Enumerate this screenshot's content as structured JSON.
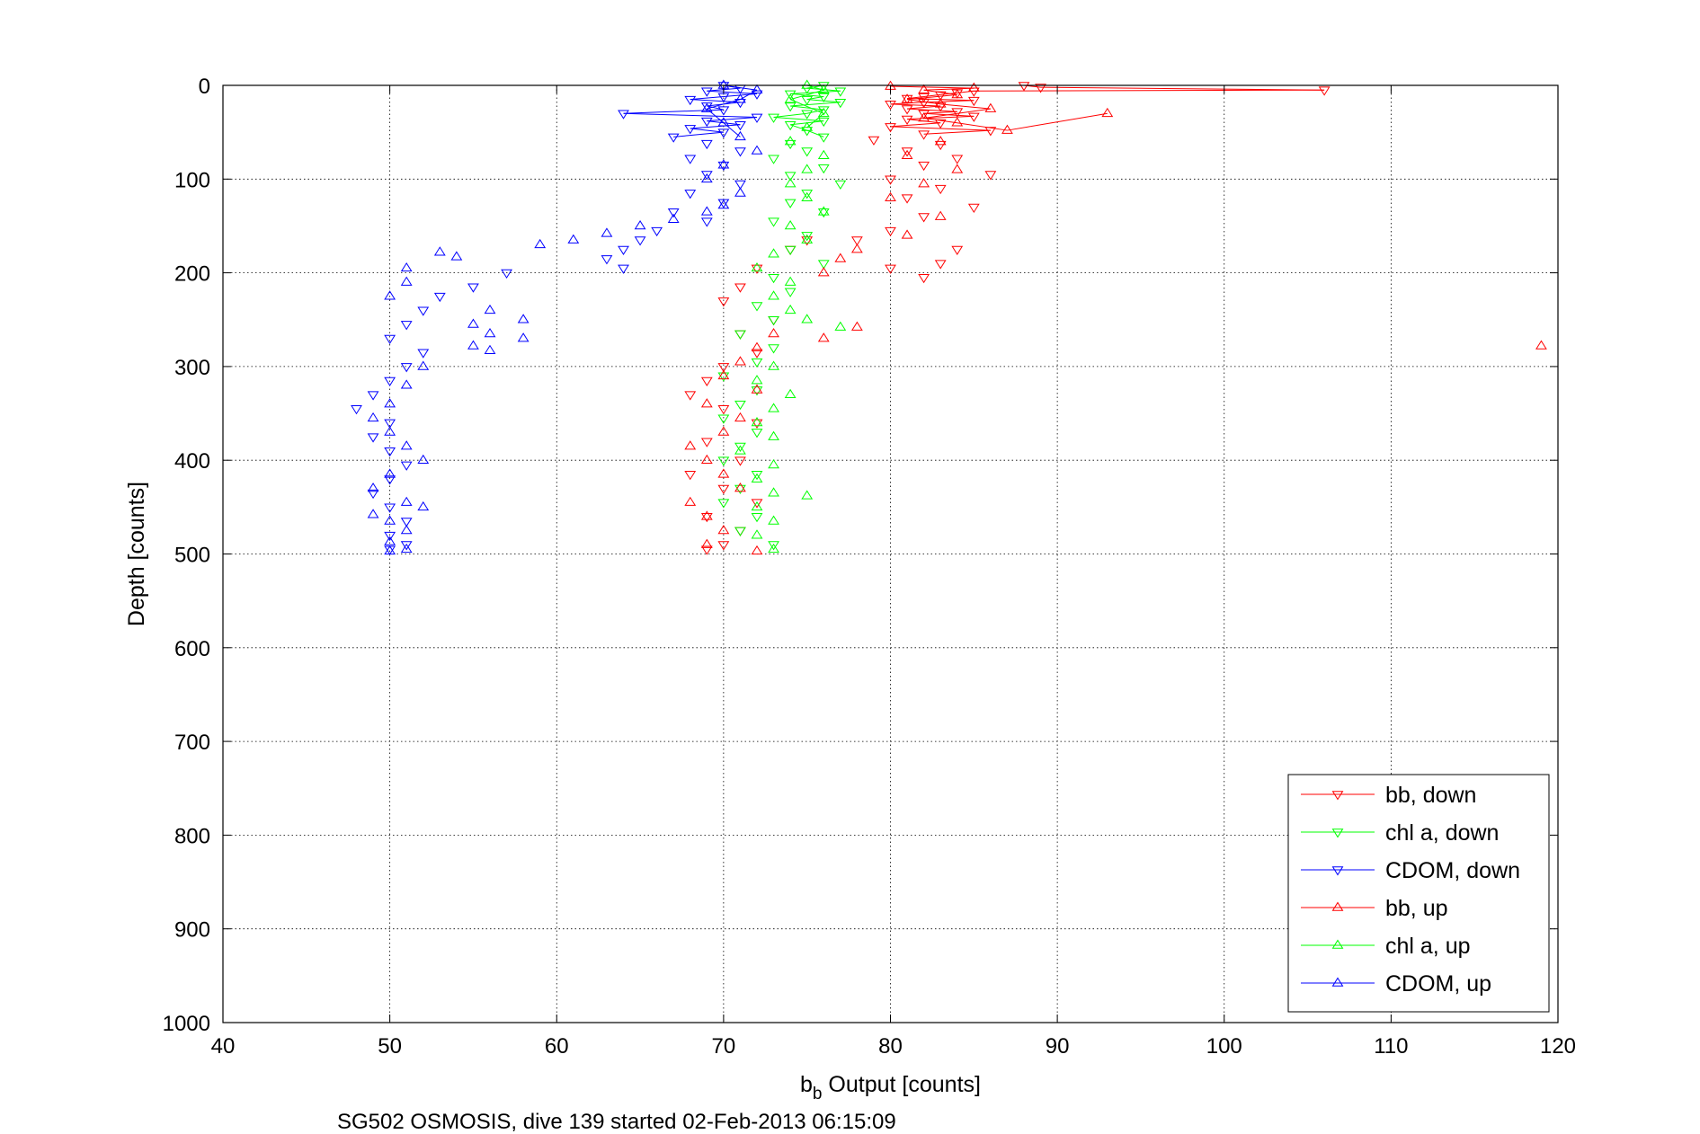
{
  "caption": "SG502 OSMOSIS, dive 139 started 02-Feb-2013 06:15:09",
  "chart_data": {
    "type": "scatter",
    "xlabel_main": "b",
    "xlabel_sub": "b",
    "xlabel_rest": " Output [counts]",
    "ylabel": "Depth [counts]",
    "xlim": [
      40,
      120
    ],
    "ylim": [
      0,
      1000
    ],
    "y_reversed": true,
    "xticks": [
      40,
      50,
      60,
      70,
      80,
      90,
      100,
      110,
      120
    ],
    "yticks": [
      0,
      100,
      200,
      300,
      400,
      500,
      600,
      700,
      800,
      900,
      1000
    ],
    "grid": true,
    "legend_position": "bottom-right",
    "series": [
      {
        "name": "bb, down",
        "color": "#ff0000",
        "marker": "triangle-down",
        "lines": true,
        "points": [
          [
            88,
            0
          ],
          [
            89,
            2
          ],
          [
            106,
            5
          ],
          [
            85,
            6
          ],
          [
            84,
            8
          ],
          [
            83,
            10
          ],
          [
            82,
            12
          ],
          [
            81,
            14
          ],
          [
            85,
            16
          ],
          [
            82,
            18
          ],
          [
            80,
            20
          ],
          [
            83,
            22
          ],
          [
            81,
            25
          ],
          [
            84,
            28
          ],
          [
            82,
            30
          ],
          [
            85,
            33
          ],
          [
            81,
            36
          ],
          [
            83,
            40
          ],
          [
            80,
            44
          ],
          [
            86,
            48
          ],
          [
            82,
            52
          ],
          [
            79,
            58
          ],
          [
            83,
            63
          ],
          [
            81,
            70
          ],
          [
            84,
            78
          ],
          [
            82,
            85
          ],
          [
            86,
            95
          ],
          [
            80,
            100
          ],
          [
            83,
            110
          ],
          [
            81,
            120
          ],
          [
            85,
            130
          ],
          [
            82,
            140
          ],
          [
            80,
            155
          ],
          [
            78,
            165
          ],
          [
            84,
            175
          ],
          [
            83,
            190
          ],
          [
            80,
            195
          ],
          [
            82,
            205
          ],
          [
            75,
            165
          ],
          [
            74,
            175
          ],
          [
            72,
            195
          ],
          [
            71,
            215
          ],
          [
            70,
            230
          ],
          [
            73,
            250
          ],
          [
            71,
            265
          ],
          [
            72,
            285
          ],
          [
            70,
            300
          ],
          [
            69,
            315
          ],
          [
            68,
            330
          ],
          [
            70,
            345
          ],
          [
            72,
            360
          ],
          [
            69,
            380
          ],
          [
            71,
            400
          ],
          [
            68,
            415
          ],
          [
            70,
            430
          ],
          [
            72,
            445
          ],
          [
            69,
            460
          ],
          [
            71,
            475
          ],
          [
            70,
            490
          ],
          [
            69,
            495
          ]
        ]
      },
      {
        "name": "chl a, down",
        "color": "#00ff00",
        "marker": "triangle-down",
        "lines": true,
        "points": [
          [
            76,
            0
          ],
          [
            75,
            3
          ],
          [
            77,
            6
          ],
          [
            74,
            9
          ],
          [
            76,
            12
          ],
          [
            75,
            15
          ],
          [
            77,
            18
          ],
          [
            74,
            22
          ],
          [
            76,
            26
          ],
          [
            75,
            30
          ],
          [
            73,
            34
          ],
          [
            76,
            38
          ],
          [
            74,
            42
          ],
          [
            75,
            48
          ],
          [
            76,
            55
          ],
          [
            74,
            62
          ],
          [
            75,
            70
          ],
          [
            73,
            78
          ],
          [
            76,
            88
          ],
          [
            74,
            96
          ],
          [
            77,
            105
          ],
          [
            75,
            115
          ],
          [
            74,
            125
          ],
          [
            76,
            135
          ],
          [
            73,
            145
          ],
          [
            75,
            160
          ],
          [
            74,
            175
          ],
          [
            76,
            190
          ],
          [
            73,
            205
          ],
          [
            74,
            220
          ],
          [
            72,
            235
          ],
          [
            73,
            250
          ],
          [
            71,
            265
          ],
          [
            73,
            280
          ],
          [
            72,
            295
          ],
          [
            70,
            310
          ],
          [
            72,
            325
          ],
          [
            71,
            340
          ],
          [
            70,
            355
          ],
          [
            72,
            370
          ],
          [
            71,
            385
          ],
          [
            70,
            400
          ],
          [
            72,
            415
          ],
          [
            71,
            430
          ],
          [
            70,
            445
          ],
          [
            72,
            460
          ],
          [
            71,
            475
          ],
          [
            73,
            490
          ]
        ]
      },
      {
        "name": "CDOM, down",
        "color": "#0000ff",
        "marker": "triangle-down",
        "lines": true,
        "points": [
          [
            70,
            0
          ],
          [
            71,
            3
          ],
          [
            69,
            6
          ],
          [
            72,
            9
          ],
          [
            70,
            12
          ],
          [
            68,
            15
          ],
          [
            71,
            18
          ],
          [
            69,
            22
          ],
          [
            70,
            26
          ],
          [
            64,
            30
          ],
          [
            72,
            34
          ],
          [
            69,
            38
          ],
          [
            71,
            42
          ],
          [
            68,
            46
          ],
          [
            70,
            50
          ],
          [
            67,
            55
          ],
          [
            69,
            62
          ],
          [
            71,
            70
          ],
          [
            68,
            78
          ],
          [
            70,
            85
          ],
          [
            69,
            95
          ],
          [
            71,
            105
          ],
          [
            68,
            115
          ],
          [
            70,
            125
          ],
          [
            67,
            135
          ],
          [
            69,
            145
          ],
          [
            66,
            155
          ],
          [
            65,
            165
          ],
          [
            64,
            175
          ],
          [
            63,
            185
          ],
          [
            64,
            195
          ],
          [
            57,
            200
          ],
          [
            55,
            215
          ],
          [
            53,
            225
          ],
          [
            52,
            240
          ],
          [
            51,
            255
          ],
          [
            50,
            270
          ],
          [
            52,
            285
          ],
          [
            51,
            300
          ],
          [
            50,
            315
          ],
          [
            49,
            330
          ],
          [
            48,
            345
          ],
          [
            50,
            360
          ],
          [
            49,
            375
          ],
          [
            50,
            390
          ],
          [
            51,
            405
          ],
          [
            50,
            420
          ],
          [
            49,
            435
          ],
          [
            50,
            450
          ],
          [
            51,
            465
          ],
          [
            50,
            480
          ],
          [
            51,
            490
          ],
          [
            50,
            495
          ]
        ]
      },
      {
        "name": "bb, up",
        "color": "#ff0000",
        "marker": "triangle-up",
        "lines": true,
        "points": [
          [
            119,
            278
          ],
          [
            93,
            30
          ],
          [
            87,
            48
          ],
          [
            84,
            40
          ],
          [
            82,
            35
          ],
          [
            86,
            25
          ],
          [
            83,
            20
          ],
          [
            81,
            15
          ],
          [
            84,
            10
          ],
          [
            82,
            5
          ],
          [
            85,
            3
          ],
          [
            80,
            1
          ],
          [
            83,
            60
          ],
          [
            81,
            75
          ],
          [
            84,
            90
          ],
          [
            82,
            105
          ],
          [
            80,
            120
          ],
          [
            83,
            140
          ],
          [
            81,
            160
          ],
          [
            78,
            175
          ],
          [
            77,
            185
          ],
          [
            76,
            200
          ],
          [
            78,
            258
          ],
          [
            76,
            270
          ],
          [
            73,
            265
          ],
          [
            72,
            280
          ],
          [
            71,
            295
          ],
          [
            70,
            310
          ],
          [
            72,
            325
          ],
          [
            69,
            340
          ],
          [
            71,
            355
          ],
          [
            70,
            370
          ],
          [
            68,
            385
          ],
          [
            69,
            400
          ],
          [
            70,
            415
          ],
          [
            71,
            430
          ],
          [
            68,
            445
          ],
          [
            69,
            460
          ],
          [
            70,
            475
          ],
          [
            69,
            490
          ],
          [
            72,
            497
          ]
        ]
      },
      {
        "name": "chl a, up",
        "color": "#00ff00",
        "marker": "triangle-up",
        "lines": true,
        "points": [
          [
            77,
            258
          ],
          [
            75,
            250
          ],
          [
            74,
            240
          ],
          [
            73,
            225
          ],
          [
            74,
            210
          ],
          [
            72,
            195
          ],
          [
            73,
            180
          ],
          [
            75,
            165
          ],
          [
            74,
            150
          ],
          [
            76,
            135
          ],
          [
            75,
            120
          ],
          [
            74,
            105
          ],
          [
            75,
            90
          ],
          [
            76,
            75
          ],
          [
            74,
            60
          ],
          [
            75,
            45
          ],
          [
            76,
            30
          ],
          [
            74,
            15
          ],
          [
            76,
            5
          ],
          [
            75,
            0
          ],
          [
            73,
            300
          ],
          [
            72,
            315
          ],
          [
            74,
            330
          ],
          [
            73,
            345
          ],
          [
            72,
            360
          ],
          [
            73,
            375
          ],
          [
            71,
            390
          ],
          [
            73,
            405
          ],
          [
            72,
            420
          ],
          [
            73,
            435
          ],
          [
            75,
            438
          ],
          [
            72,
            450
          ],
          [
            73,
            465
          ],
          [
            72,
            480
          ],
          [
            73,
            495
          ]
        ]
      },
      {
        "name": "CDOM, up",
        "color": "#0000ff",
        "marker": "triangle-up",
        "lines": true,
        "points": [
          [
            50,
            225
          ],
          [
            51,
            210
          ],
          [
            51,
            195
          ],
          [
            53,
            178
          ],
          [
            54,
            183
          ],
          [
            56,
            240
          ],
          [
            55,
            255
          ],
          [
            56,
            265
          ],
          [
            58,
            250
          ],
          [
            58,
            270
          ],
          [
            55,
            278
          ],
          [
            56,
            283
          ],
          [
            59,
            170
          ],
          [
            61,
            165
          ],
          [
            63,
            158
          ],
          [
            65,
            150
          ],
          [
            67,
            143
          ],
          [
            69,
            135
          ],
          [
            70,
            128
          ],
          [
            71,
            115
          ],
          [
            69,
            100
          ],
          [
            70,
            85
          ],
          [
            72,
            70
          ],
          [
            71,
            55
          ],
          [
            70,
            40
          ],
          [
            69,
            25
          ],
          [
            71,
            15
          ],
          [
            72,
            5
          ],
          [
            70,
            0
          ],
          [
            52,
            300
          ],
          [
            51,
            320
          ],
          [
            50,
            340
          ],
          [
            49,
            355
          ],
          [
            50,
            370
          ],
          [
            51,
            385
          ],
          [
            52,
            400
          ],
          [
            50,
            415
          ],
          [
            49,
            430
          ],
          [
            51,
            445
          ],
          [
            52,
            450
          ],
          [
            50,
            465
          ],
          [
            49,
            458
          ],
          [
            51,
            475
          ],
          [
            50,
            487
          ],
          [
            51,
            495
          ],
          [
            50,
            497
          ]
        ]
      }
    ]
  }
}
